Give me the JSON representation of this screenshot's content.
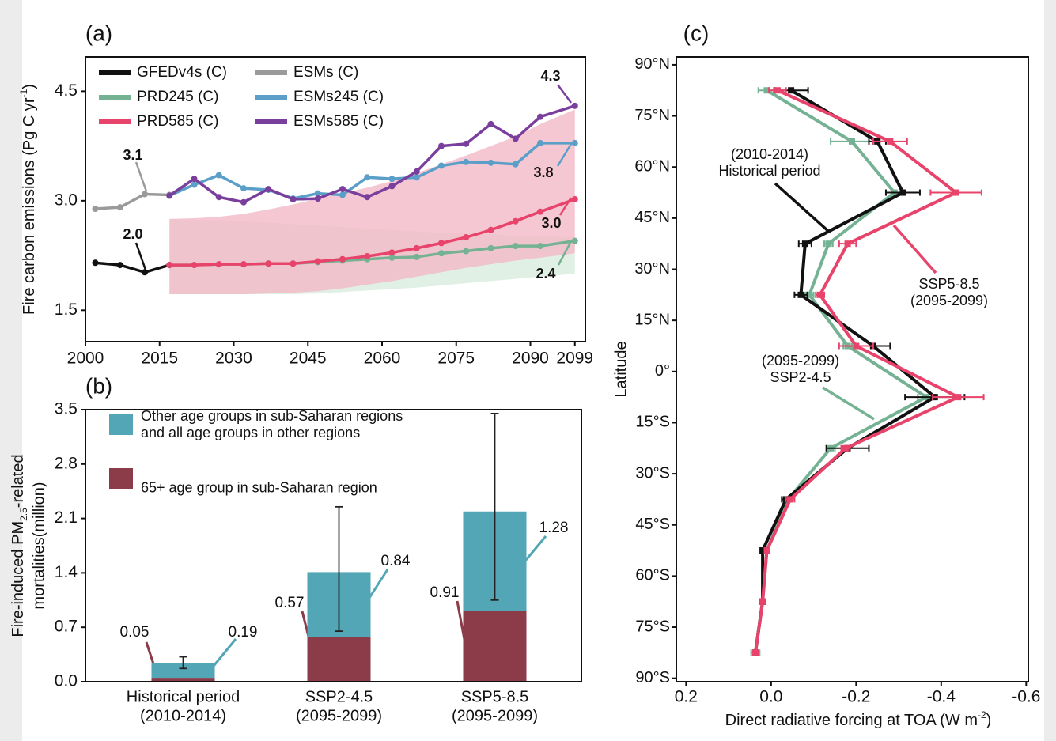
{
  "chart_data": [
    {
      "type": "line",
      "panel": "(a)",
      "ylabel": [
        "Fire carbon emissions (Pg C  yr",
        "-1",
        ")"
      ],
      "xlim": [
        2000,
        2100
      ],
      "ylim": [
        1.07,
        4.97
      ],
      "xticks": [
        2000,
        2015,
        2030,
        2045,
        2060,
        2075,
        2090,
        2099
      ],
      "yticks": [
        1.5,
        {
          "value": 3,
          "label": "3.0"
        },
        4.5
      ],
      "bands": [
        {
          "color": "#d9ecdf",
          "x": [
            2017,
            2022,
            2027,
            2032,
            2037,
            2042,
            2047,
            2052,
            2057,
            2062,
            2067,
            2072,
            2077,
            2082,
            2087,
            2092,
            2099
          ],
          "lower": [
            1.72,
            1.72,
            1.72,
            1.72,
            1.72,
            1.72,
            1.73,
            1.75,
            1.77,
            1.79,
            1.81,
            1.84,
            1.87,
            1.9,
            1.93,
            1.96,
            2.0
          ],
          "upper": [
            2.75,
            2.74,
            2.73,
            2.72,
            2.7,
            2.68,
            2.66,
            2.64,
            2.62,
            2.6,
            2.58,
            2.56,
            2.55,
            2.54,
            2.52,
            2.51,
            2.5
          ]
        },
        {
          "color": "#f3b9c7",
          "x": [
            2017,
            2022,
            2027,
            2032,
            2037,
            2042,
            2047,
            2052,
            2057,
            2062,
            2067,
            2072,
            2077,
            2082,
            2087,
            2092,
            2099
          ],
          "lower": [
            1.72,
            1.72,
            1.72,
            1.72,
            1.73,
            1.74,
            1.76,
            1.8,
            1.85,
            1.9,
            1.96,
            2.02,
            2.08,
            2.13,
            2.18,
            2.22,
            2.28
          ],
          "upper": [
            2.75,
            2.76,
            2.78,
            2.82,
            2.88,
            2.95,
            3.03,
            3.1,
            3.18,
            3.27,
            3.38,
            3.5,
            3.62,
            3.75,
            3.88,
            4.05,
            4.25
          ]
        }
      ],
      "series": [
        {
          "name": "GFEDv4s (C)",
          "color": "#111111",
          "x": [
            2002,
            2007,
            2012,
            2017
          ],
          "values": [
            2.15,
            2.12,
            2.02,
            2.12
          ]
        },
        {
          "name": "ESMs (C)",
          "color": "#9a9a9a",
          "x": [
            2002,
            2007,
            2012,
            2017
          ],
          "values": [
            2.89,
            2.91,
            3.09,
            3.08
          ]
        },
        {
          "name": "PRD245 (C)",
          "color": "#74b293",
          "x": [
            2017,
            2022,
            2027,
            2032,
            2037,
            2042,
            2047,
            2052,
            2057,
            2062,
            2067,
            2072,
            2077,
            2082,
            2087,
            2092,
            2099
          ],
          "values": [
            2.12,
            2.12,
            2.13,
            2.13,
            2.14,
            2.14,
            2.16,
            2.18,
            2.2,
            2.22,
            2.23,
            2.28,
            2.31,
            2.35,
            2.38,
            2.38,
            2.45
          ]
        },
        {
          "name": "ESMs245 (C)",
          "color": "#5b9fc8",
          "x": [
            2017,
            2022,
            2027,
            2032,
            2037,
            2042,
            2047,
            2052,
            2057,
            2062,
            2067,
            2072,
            2077,
            2082,
            2087,
            2092,
            2099
          ],
          "values": [
            3.07,
            3.22,
            3.35,
            3.17,
            3.15,
            3.03,
            3.1,
            3.08,
            3.32,
            3.3,
            3.32,
            3.48,
            3.53,
            3.52,
            3.5,
            3.79,
            3.79
          ]
        },
        {
          "name": "PRD585 (C)",
          "color": "#e8436a",
          "x": [
            2017,
            2022,
            2027,
            2032,
            2037,
            2042,
            2047,
            2052,
            2057,
            2062,
            2067,
            2072,
            2077,
            2082,
            2087,
            2092,
            2099
          ],
          "values": [
            2.12,
            2.12,
            2.13,
            2.13,
            2.14,
            2.14,
            2.17,
            2.2,
            2.24,
            2.29,
            2.35,
            2.42,
            2.5,
            2.6,
            2.72,
            2.85,
            3.02
          ]
        },
        {
          "name": "ESMs585 (C)",
          "color": "#7a3f9d",
          "x": [
            2017,
            2022,
            2027,
            2032,
            2037,
            2042,
            2047,
            2052,
            2057,
            2062,
            2067,
            2072,
            2077,
            2082,
            2087,
            2092,
            2099
          ],
          "values": [
            3.07,
            3.3,
            3.05,
            2.98,
            3.16,
            3.02,
            3.03,
            3.16,
            3.05,
            3.2,
            3.4,
            3.75,
            3.78,
            4.05,
            3.85,
            4.15,
            4.3
          ]
        }
      ],
      "annotations": [
        "2.0",
        "3.1",
        "4.3",
        "3.8",
        "3.0",
        "2.4"
      ]
    },
    {
      "type": "stacked_bar",
      "panel": "(b)",
      "ylabel": [
        "Fire-induced PM",
        "2.5",
        "-related",
        "mortalities(million)"
      ],
      "categories": [
        "Historical period\n(2010-2014)",
        "SSP2-4.5\n(2095-2099)",
        "SSP5-8.5\n(2095-2099)"
      ],
      "ylim": [
        0,
        3.5
      ],
      "yticks": [
        {
          "value": 0,
          "label": "0.0"
        },
        0.7,
        1.4,
        2.1,
        2.8,
        3.5
      ],
      "series": [
        {
          "name": "65+ age group in sub-Saharan region",
          "color": "#8c3b48",
          "values": [
            0.05,
            0.57,
            0.91
          ]
        },
        {
          "name": "Other age groups in sub-Saharan regions\nand all age groups in other regions",
          "color": "#52a6b5",
          "values": [
            0.19,
            0.84,
            1.28
          ]
        }
      ],
      "error_bars": {
        "lower": [
          0.17,
          0.65,
          1.05
        ],
        "upper": [
          0.32,
          2.25,
          3.45
        ]
      }
    },
    {
      "type": "profile",
      "panel": "(c)",
      "xlabel": [
        "Direct radiative forcing at TOA (W m",
        "-2",
        ")"
      ],
      "ylabel": "Latitude",
      "xlim": [
        0.223,
        -0.605
      ],
      "ylim": [
        -91,
        92.3
      ],
      "xticks": [
        0.2,
        {
          "value": 0,
          "label": "0.0"
        },
        -0.2,
        -0.4,
        -0.6
      ],
      "yticks": [
        {
          "value": 90,
          "label": "90°N"
        },
        {
          "value": 75,
          "label": "75°N"
        },
        {
          "value": 60,
          "label": "60°N"
        },
        {
          "value": 45,
          "label": "45°N"
        },
        {
          "value": 30,
          "label": "30°N"
        },
        {
          "value": 15,
          "label": "15°N"
        },
        {
          "value": 0,
          "label": "0°"
        },
        {
          "value": -15,
          "label": "15°S"
        },
        {
          "value": -30,
          "label": "30°S"
        },
        {
          "value": -45,
          "label": "45°S"
        },
        {
          "value": -60,
          "label": "60°S"
        },
        {
          "value": -75,
          "label": "75°S"
        },
        {
          "value": -90,
          "label": "90°S"
        }
      ],
      "latitude": [
        82.5,
        67.5,
        52.5,
        37.5,
        22.5,
        7.5,
        -7.5,
        -22.5,
        -37.5,
        -52.5,
        -67.5,
        -82.5
      ],
      "series": [
        {
          "color": "#74b293",
          "values": [
            0.01,
            -0.19,
            -0.29,
            -0.135,
            -0.09,
            -0.18,
            -0.365,
            -0.14,
            -0.04,
            0.01,
            0.02,
            0.037
          ],
          "errors": [
            0.02,
            0.05,
            0.02,
            0.01,
            0.01,
            0.01,
            0.02,
            0.01,
            0.01,
            0.005,
            0.005,
            0.01
          ]
        },
        {
          "color": "#111111",
          "values": [
            -0.047,
            -0.25,
            -0.31,
            -0.08,
            -0.07,
            -0.24,
            -0.385,
            -0.18,
            -0.035,
            0.02,
            0.02,
            0.037
          ],
          "errors": [
            0.04,
            0.02,
            0.04,
            0.015,
            0.015,
            0.04,
            0.07,
            0.05,
            0.01,
            0.005,
            0.005,
            0.005
          ]
        },
        {
          "color": "#e8436a",
          "values": [
            -0.015,
            -0.28,
            -0.435,
            -0.18,
            -0.115,
            -0.2,
            -0.44,
            -0.175,
            -0.045,
            0.01,
            0.02,
            0.037
          ],
          "errors": [
            0.02,
            0.04,
            0.06,
            0.02,
            0.01,
            0.04,
            0.06,
            0.01,
            0.01,
            0.005,
            0.005,
            0.005
          ]
        }
      ],
      "annotations": [
        "(2010-2014)\nHistorical period",
        "SSP5-8.5\n(2095-2099)",
        "(2095-2099)\nSSP2-4.5"
      ]
    }
  ]
}
